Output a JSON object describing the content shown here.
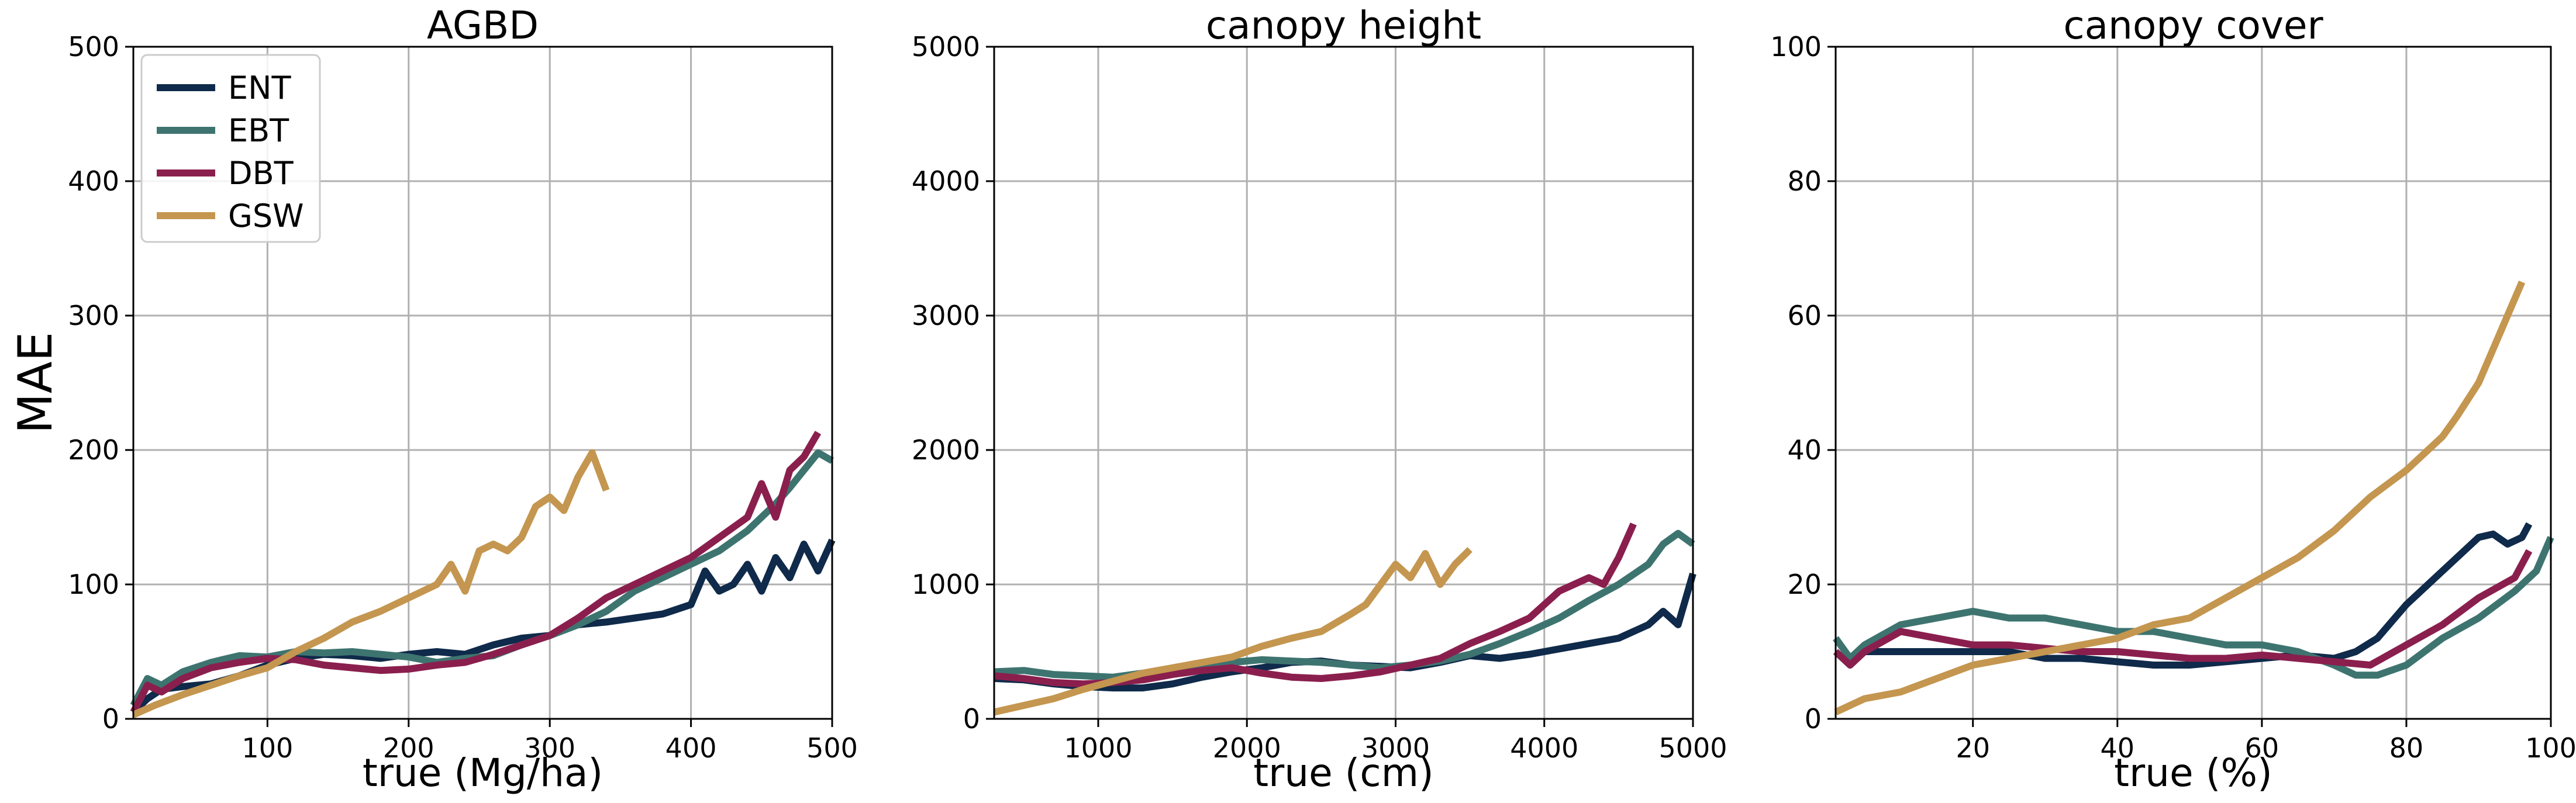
{
  "colors": {
    "ENT": "#0f2a4a",
    "EBT": "#3e7470",
    "DBT": "#8a1f4e",
    "GSW": "#c4964f"
  },
  "chart_data": [
    {
      "type": "line",
      "title": "AGBD",
      "xlabel": "true (Mg/ha)",
      "ylabel": "MAE",
      "xlim": [
        5,
        500
      ],
      "ylim": [
        0,
        500
      ],
      "xticks": [
        100,
        200,
        300,
        400,
        500
      ],
      "yticks": [
        0,
        100,
        200,
        300,
        400,
        500
      ],
      "grid": true,
      "legend": "top-left",
      "series": [
        {
          "name": "ENT",
          "x": [
            5,
            15,
            25,
            40,
            60,
            80,
            100,
            120,
            140,
            160,
            180,
            200,
            220,
            240,
            260,
            280,
            300,
            320,
            340,
            360,
            380,
            400,
            410,
            420,
            430,
            440,
            450,
            460,
            470,
            480,
            490,
            500
          ],
          "y": [
            5,
            15,
            22,
            24,
            26,
            32,
            40,
            45,
            48,
            47,
            45,
            48,
            50,
            48,
            55,
            60,
            62,
            70,
            72,
            75,
            78,
            85,
            110,
            95,
            100,
            115,
            95,
            120,
            105,
            130,
            110,
            133
          ]
        },
        {
          "name": "EBT",
          "x": [
            5,
            15,
            25,
            40,
            60,
            80,
            100,
            120,
            140,
            160,
            180,
            200,
            220,
            240,
            260,
            280,
            300,
            320,
            340,
            360,
            380,
            400,
            420,
            440,
            460,
            470,
            480,
            490,
            500
          ],
          "y": [
            10,
            30,
            25,
            35,
            42,
            47,
            46,
            50,
            49,
            50,
            48,
            46,
            42,
            45,
            47,
            55,
            62,
            70,
            80,
            95,
            105,
            115,
            125,
            140,
            160,
            172,
            185,
            198,
            192
          ]
        },
        {
          "name": "DBT",
          "x": [
            5,
            15,
            25,
            40,
            60,
            80,
            100,
            120,
            140,
            160,
            180,
            200,
            220,
            240,
            260,
            280,
            300,
            320,
            340,
            360,
            380,
            400,
            420,
            440,
            450,
            460,
            470,
            480,
            490
          ],
          "y": [
            5,
            25,
            20,
            30,
            38,
            42,
            45,
            44,
            40,
            38,
            36,
            37,
            40,
            42,
            48,
            55,
            62,
            75,
            90,
            100,
            110,
            120,
            135,
            150,
            175,
            150,
            185,
            195,
            213
          ]
        },
        {
          "name": "GSW",
          "x": [
            5,
            20,
            40,
            60,
            80,
            100,
            120,
            140,
            160,
            180,
            200,
            210,
            220,
            230,
            240,
            250,
            260,
            270,
            280,
            290,
            300,
            310,
            320,
            330,
            340
          ],
          "y": [
            3,
            10,
            18,
            25,
            32,
            38,
            50,
            60,
            72,
            80,
            90,
            95,
            100,
            115,
            95,
            125,
            130,
            125,
            135,
            158,
            165,
            155,
            180,
            198,
            170
          ]
        }
      ]
    },
    {
      "type": "line",
      "title": "canopy height",
      "xlabel": "true (cm)",
      "ylabel": "",
      "xlim": [
        300,
        5000
      ],
      "ylim": [
        0,
        5000
      ],
      "xticks": [
        1000,
        2000,
        3000,
        4000,
        5000
      ],
      "yticks": [
        0,
        1000,
        2000,
        3000,
        4000,
        5000
      ],
      "grid": true,
      "series": [
        {
          "name": "ENT",
          "x": [
            300,
            500,
            700,
            900,
            1100,
            1300,
            1500,
            1700,
            1900,
            2100,
            2300,
            2500,
            2700,
            2900,
            3100,
            3300,
            3500,
            3700,
            3900,
            4100,
            4300,
            4500,
            4600,
            4700,
            4800,
            4900,
            5000
          ],
          "y": [
            300,
            290,
            260,
            240,
            230,
            230,
            260,
            310,
            350,
            380,
            420,
            430,
            400,
            390,
            380,
            420,
            470,
            450,
            480,
            520,
            560,
            600,
            650,
            700,
            800,
            700,
            1080
          ]
        },
        {
          "name": "EBT",
          "x": [
            300,
            500,
            700,
            900,
            1100,
            1300,
            1500,
            1700,
            1900,
            2100,
            2300,
            2500,
            2700,
            2900,
            3100,
            3300,
            3500,
            3700,
            3900,
            4100,
            4300,
            4500,
            4700,
            4800,
            4900,
            5000
          ],
          "y": [
            350,
            360,
            330,
            320,
            310,
            340,
            370,
            400,
            420,
            440,
            430,
            420,
            400,
            380,
            400,
            430,
            480,
            560,
            650,
            750,
            880,
            1000,
            1150,
            1300,
            1380,
            1300
          ]
        },
        {
          "name": "DBT",
          "x": [
            300,
            500,
            700,
            900,
            1100,
            1300,
            1500,
            1700,
            1900,
            2100,
            2300,
            2500,
            2700,
            2900,
            3100,
            3300,
            3500,
            3700,
            3900,
            4100,
            4300,
            4400,
            4500,
            4600
          ],
          "y": [
            320,
            300,
            270,
            260,
            270,
            290,
            330,
            360,
            380,
            340,
            310,
            300,
            320,
            350,
            400,
            450,
            560,
            650,
            750,
            950,
            1050,
            1000,
            1200,
            1450
          ]
        },
        {
          "name": "GSW",
          "x": [
            300,
            500,
            700,
            900,
            1100,
            1300,
            1500,
            1700,
            1900,
            2100,
            2300,
            2500,
            2700,
            2800,
            2900,
            3000,
            3100,
            3200,
            3300,
            3400,
            3500
          ],
          "y": [
            50,
            100,
            150,
            220,
            280,
            340,
            380,
            420,
            460,
            540,
            600,
            650,
            780,
            850,
            1000,
            1150,
            1050,
            1230,
            1000,
            1150,
            1260
          ]
        }
      ]
    },
    {
      "type": "line",
      "title": "canopy cover",
      "xlabel": "true (%)",
      "ylabel": "",
      "xlim": [
        1,
        100
      ],
      "ylim": [
        0,
        100
      ],
      "xticks": [
        20,
        40,
        60,
        80,
        100
      ],
      "yticks": [
        0,
        20,
        40,
        60,
        80,
        100
      ],
      "grid": true,
      "series": [
        {
          "name": "ENT",
          "x": [
            1,
            3,
            5,
            10,
            15,
            20,
            25,
            30,
            35,
            40,
            45,
            50,
            55,
            60,
            65,
            70,
            73,
            76,
            80,
            85,
            88,
            90,
            92,
            94,
            96,
            97
          ],
          "y": [
            10,
            8,
            10,
            10,
            10,
            10,
            10,
            9,
            9,
            8.5,
            8,
            8,
            8.5,
            9,
            9.5,
            9,
            10,
            12,
            17,
            22,
            25,
            27,
            27.5,
            26,
            27,
            29
          ]
        },
        {
          "name": "EBT",
          "x": [
            1,
            3,
            5,
            10,
            15,
            20,
            25,
            30,
            35,
            40,
            45,
            50,
            55,
            60,
            65,
            70,
            73,
            76,
            80,
            85,
            90,
            95,
            98,
            100
          ],
          "y": [
            12,
            9,
            11,
            14,
            15,
            16,
            15,
            15,
            14,
            13,
            13,
            12,
            11,
            11,
            10,
            8,
            6.5,
            6.5,
            8,
            12,
            15,
            19,
            22,
            27
          ]
        },
        {
          "name": "DBT",
          "x": [
            1,
            3,
            5,
            10,
            15,
            20,
            25,
            30,
            35,
            40,
            45,
            50,
            55,
            60,
            65,
            70,
            75,
            80,
            85,
            90,
            95,
            97
          ],
          "y": [
            10,
            8,
            10,
            13,
            12,
            11,
            11,
            10.5,
            10,
            10,
            9.5,
            9,
            9,
            9.5,
            9,
            8.5,
            8,
            11,
            14,
            18,
            21,
            25
          ]
        },
        {
          "name": "GSW",
          "x": [
            1,
            5,
            10,
            15,
            20,
            25,
            30,
            35,
            40,
            45,
            50,
            55,
            60,
            65,
            70,
            72,
            75,
            80,
            85,
            87,
            90,
            92,
            94,
            96
          ],
          "y": [
            1,
            3,
            4,
            6,
            8,
            9,
            10,
            11,
            12,
            14,
            15,
            18,
            21,
            24,
            28,
            30,
            33,
            37,
            42,
            45,
            50,
            55,
            60,
            65
          ]
        }
      ]
    }
  ]
}
